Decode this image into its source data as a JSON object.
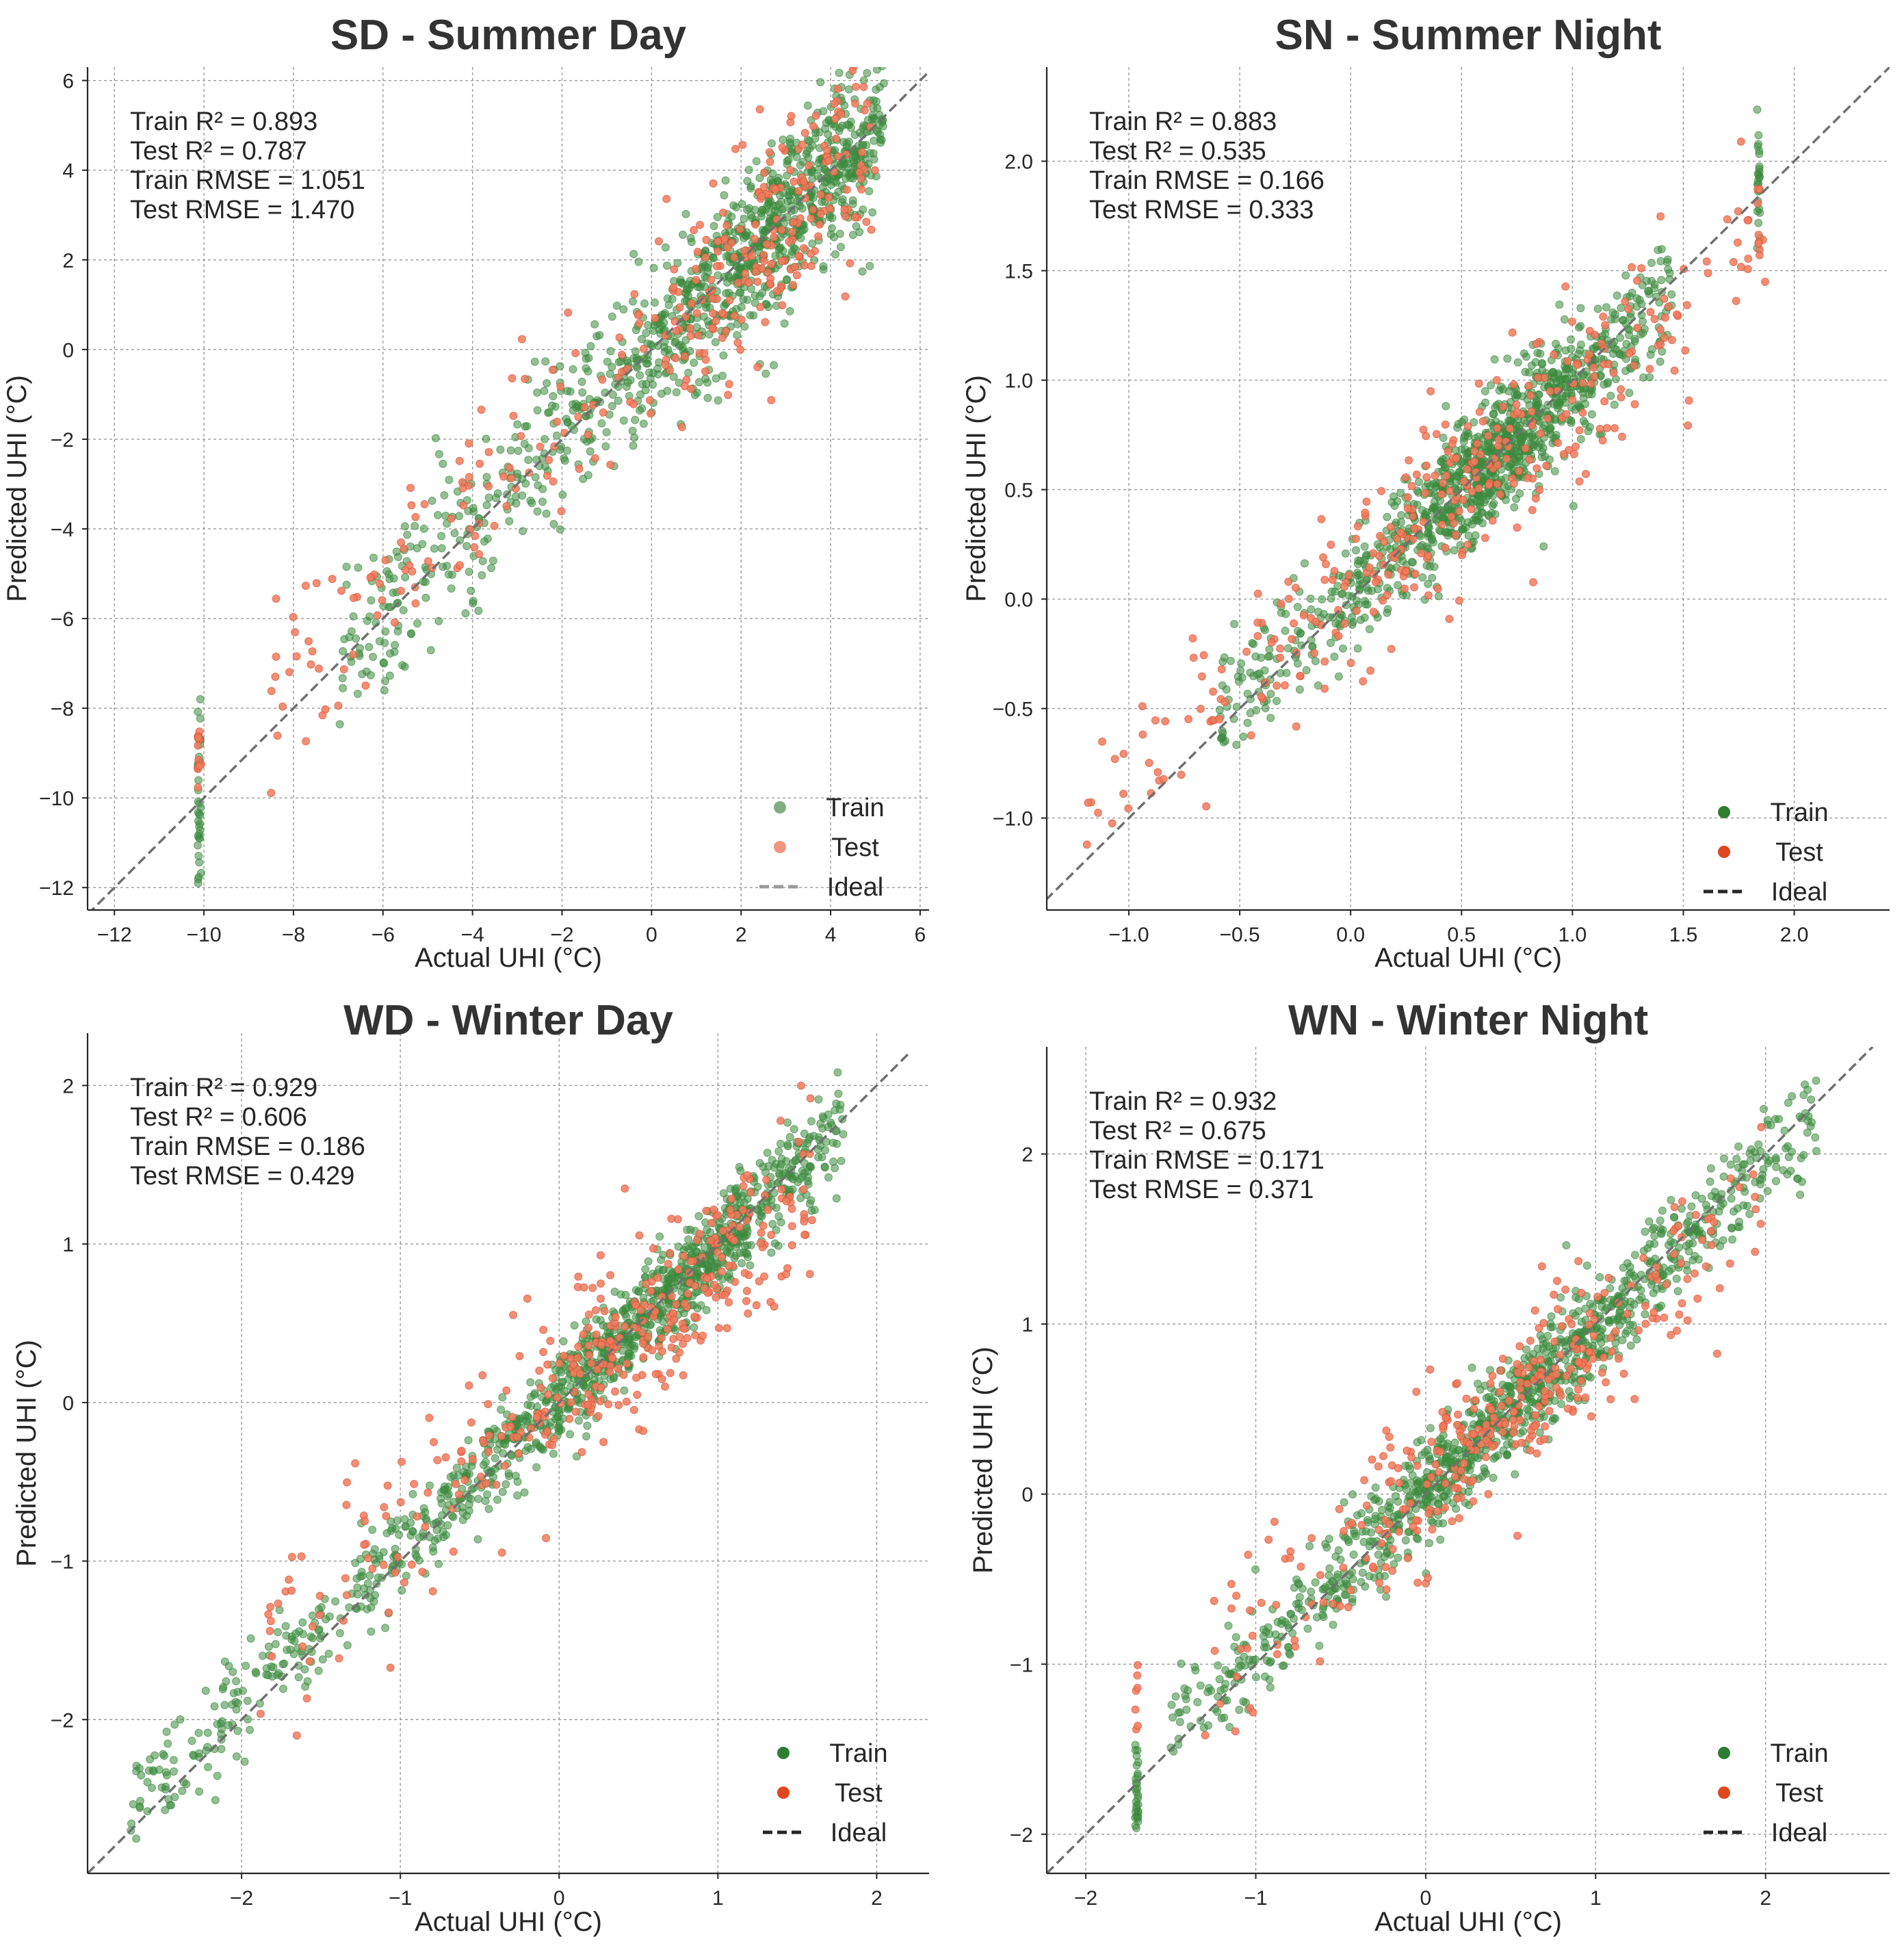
{
  "figure": {
    "legend_labels": {
      "train": "Train",
      "test": "Test",
      "ideal": "Ideal"
    },
    "colors": {
      "train": "#2e7d32",
      "test": "#e0471f",
      "ideal": "#707070",
      "title": "#333333"
    }
  },
  "chart_data": [
    {
      "type": "scatter",
      "id": "sd",
      "title": "SD - Summer Day",
      "xlabel": "Actual UHI (°C)",
      "ylabel": "Predicted UHI (°C)",
      "xlim": [
        -12.6,
        6.2
      ],
      "ylim": [
        -12.5,
        6.3
      ],
      "xticks": [
        -12,
        -10,
        -8,
        -6,
        -4,
        -2,
        0,
        2,
        4,
        6
      ],
      "yticks": [
        -12,
        -10,
        -8,
        -6,
        -4,
        -2,
        0,
        2,
        4,
        6
      ],
      "metrics": [
        "Train R² = 0.893",
        "Test R² = 0.787",
        "Train RMSE = 1.051",
        "Test RMSE = 1.470"
      ],
      "legend_location": "lower-right",
      "legend_style": "muted",
      "grid": true,
      "series": [
        {
          "name": "Train",
          "n": 1100,
          "x_range": [
            -7.0,
            5.2
          ],
          "x_peak": 3.0,
          "noise_sd": 0.9,
          "slope": 0.96,
          "intercept": 0.05,
          "cluster": {
            "x": -10.1,
            "n": 35,
            "y_range": [
              -12.3,
              -7.7
            ]
          }
        },
        {
          "name": "Test",
          "n": 330,
          "x_range": [
            -8.5,
            5.0
          ],
          "x_peak": 3.0,
          "noise_sd": 1.1,
          "slope": 0.9,
          "intercept": 0.1,
          "cluster": {
            "x": -10.1,
            "n": 12,
            "y_range": [
              -9.8,
              -8.5
            ]
          }
        },
        {
          "name": "Ideal",
          "style": "dashed",
          "from": [
            -12.6,
            -12.6
          ],
          "to": [
            6.3,
            6.3
          ]
        }
      ]
    },
    {
      "type": "scatter",
      "id": "sn",
      "title": "SN - Summer Night",
      "xlabel": "Actual UHI (°C)",
      "ylabel": "Predicted UHI (°C)",
      "xlim": [
        -1.37,
        2.43
      ],
      "ylim": [
        -1.42,
        2.43
      ],
      "xticks": [
        -1.0,
        -0.5,
        0.0,
        0.5,
        1.0,
        1.5,
        2.0
      ],
      "yticks": [
        -1.0,
        -0.5,
        0.0,
        0.5,
        1.0,
        1.5,
        2.0
      ],
      "tick_decimals": 1,
      "metrics": [
        "Train R² = 0.883",
        "Test R² = 0.535",
        "Train RMSE = 0.166",
        "Test RMSE = 0.333"
      ],
      "legend_location": "lower-right",
      "grid": true,
      "series": [
        {
          "name": "Train",
          "n": 1100,
          "x_range": [
            -0.6,
            1.45
          ],
          "x_peak": 0.65,
          "noise_sd": 0.14,
          "slope": 0.95,
          "intercept": 0.03,
          "cluster": {
            "x": 1.84,
            "n": 25,
            "y_range": [
              1.6,
              2.25
            ]
          }
        },
        {
          "name": "Test",
          "n": 330,
          "x_range": [
            -1.2,
            1.9
          ],
          "x_peak": 0.65,
          "noise_sd": 0.2,
          "slope": 0.85,
          "intercept": 0.07,
          "cluster": {
            "x": 1.84,
            "n": 8,
            "y_range": [
              1.55,
              1.9
            ]
          }
        },
        {
          "name": "Ideal",
          "style": "dashed",
          "from": [
            -1.42,
            -1.42
          ],
          "to": [
            2.45,
            2.45
          ]
        }
      ]
    },
    {
      "type": "scatter",
      "id": "wd",
      "title": "WD - Winter Day",
      "xlabel": "Actual UHI (°C)",
      "ylabel": "Predicted UHI (°C)",
      "xlim": [
        -2.97,
        2.33
      ],
      "ylim": [
        -2.97,
        2.33
      ],
      "xticks": [
        -2,
        -1,
        0,
        1,
        2
      ],
      "yticks": [
        -2,
        -1,
        0,
        1,
        2
      ],
      "metrics": [
        "Train R² = 0.929",
        "Test R² = 0.606",
        "Train RMSE = 0.186",
        "Test RMSE = 0.429"
      ],
      "legend_location": "lower-right",
      "grid": true,
      "series": [
        {
          "name": "Train",
          "n": 1200,
          "x_range": [
            -2.7,
            1.8
          ],
          "x_peak": 0.6,
          "noise_sd": 0.16,
          "slope": 0.95,
          "intercept": 0.02
        },
        {
          "name": "Test",
          "n": 360,
          "x_range": [
            -1.9,
            1.6
          ],
          "x_peak": 0.6,
          "noise_sd": 0.3,
          "slope": 0.8,
          "intercept": 0.08
        },
        {
          "name": "Ideal",
          "style": "dashed",
          "from": [
            -2.97,
            -2.97
          ],
          "to": [
            2.2,
            2.2
          ]
        }
      ]
    },
    {
      "type": "scatter",
      "id": "wn",
      "title": "WN - Winter Night",
      "xlabel": "Actual UHI (°C)",
      "ylabel": "Predicted UHI (°C)",
      "xlim": [
        -2.23,
        2.73
      ],
      "ylim": [
        -2.23,
        2.63
      ],
      "xticks": [
        -2,
        -1,
        0,
        1,
        2
      ],
      "yticks": [
        -2,
        -1,
        0,
        1,
        2
      ],
      "metrics": [
        "Train R² = 0.932",
        "Test R² = 0.675",
        "Train RMSE = 0.171",
        "Test RMSE = 0.371"
      ],
      "legend_location": "lower-right",
      "grid": true,
      "series": [
        {
          "name": "Train",
          "n": 1100,
          "x_range": [
            -1.5,
            2.3
          ],
          "x_peak": 0.5,
          "noise_sd": 0.15,
          "slope": 0.96,
          "intercept": 0.02,
          "cluster": {
            "x": -1.7,
            "n": 30,
            "y_range": [
              -1.98,
              -1.45
            ]
          }
        },
        {
          "name": "Test",
          "n": 330,
          "x_range": [
            -1.3,
            2.0
          ],
          "x_peak": 0.5,
          "noise_sd": 0.25,
          "slope": 0.85,
          "intercept": 0.05,
          "cluster": {
            "x": -1.7,
            "n": 7,
            "y_range": [
              -1.4,
              -0.98
            ]
          }
        },
        {
          "name": "Ideal",
          "style": "dashed",
          "from": [
            -2.23,
            -2.23
          ],
          "to": [
            2.63,
            2.63
          ]
        }
      ]
    }
  ]
}
